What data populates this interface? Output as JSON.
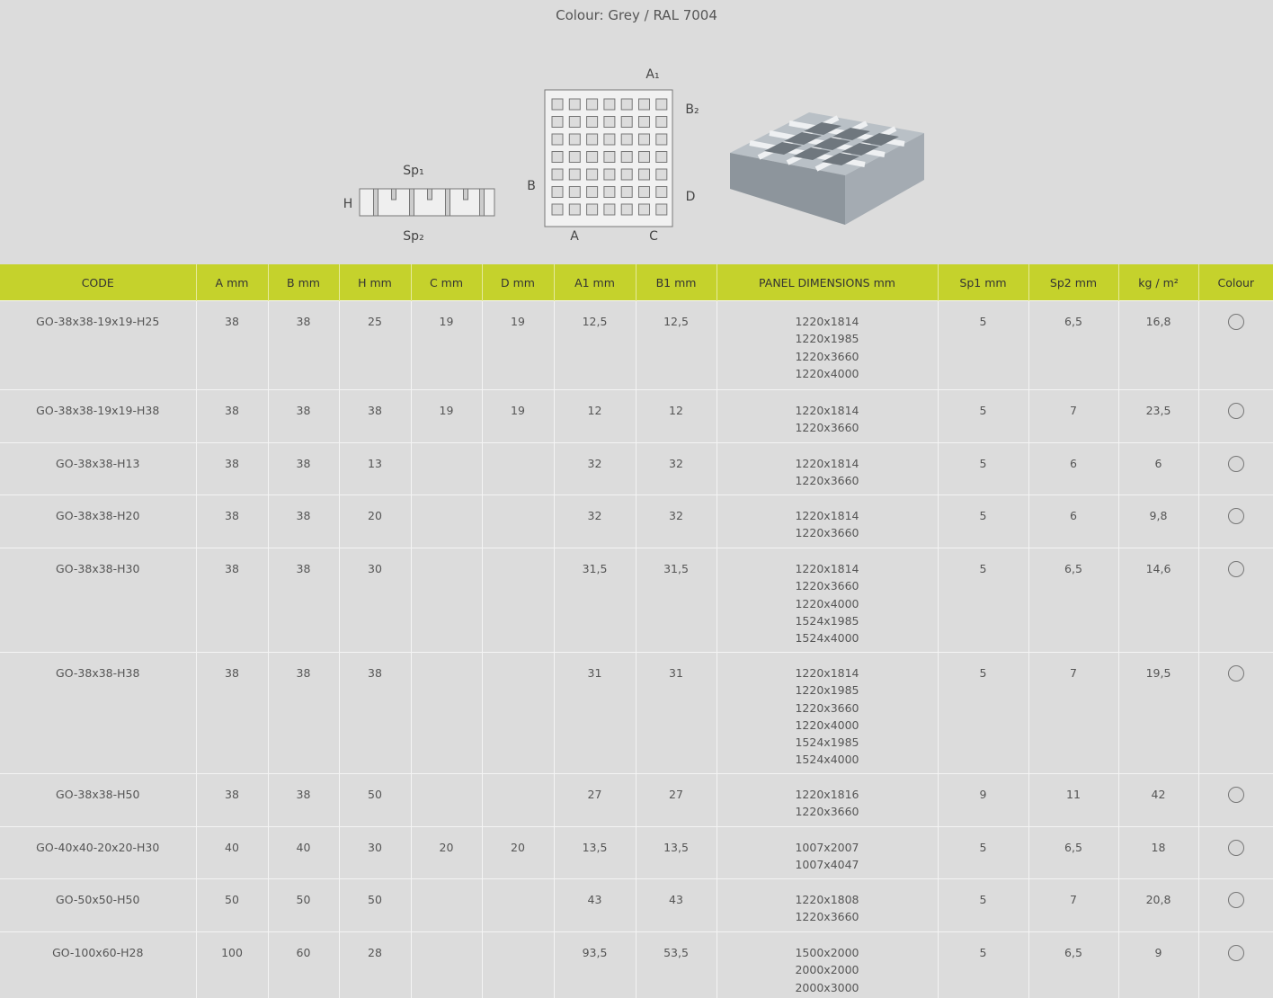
{
  "title": "Colour: Grey / RAL 7004",
  "diagram": {
    "labels": {
      "h": "H",
      "sp1": "Sp₁",
      "sp2": "Sp₂",
      "a1": "A₁",
      "b2": "B₂",
      "b": "B",
      "d": "D",
      "a": "A",
      "c": "C"
    }
  },
  "table": {
    "headers": [
      "CODE",
      "A mm",
      "B mm",
      "H mm",
      "C mm",
      "D mm",
      "A1 mm",
      "B1 mm",
      "PANEL DIMENSIONS mm",
      "Sp1 mm",
      "Sp2 mm",
      "kg / m²",
      "Colour"
    ],
    "rows": [
      [
        "GO-38x38-19x19-H25",
        "38",
        "38",
        "25",
        "19",
        "19",
        "12,5",
        "12,5",
        [
          "1220x1814",
          "1220x1985",
          "1220x3660",
          "1220x4000"
        ],
        "5",
        "6,5",
        "16,8"
      ],
      [
        "GO-38x38-19x19-H38",
        "38",
        "38",
        "38",
        "19",
        "19",
        "12",
        "12",
        [
          "1220x1814",
          "1220x3660"
        ],
        "5",
        "7",
        "23,5"
      ],
      [
        "GO-38x38-H13",
        "38",
        "38",
        "13",
        null,
        null,
        "32",
        "32",
        [
          "1220x1814",
          "1220x3660"
        ],
        "5",
        "6",
        "6"
      ],
      [
        "GO-38x38-H20",
        "38",
        "38",
        "20",
        null,
        null,
        "32",
        "32",
        [
          "1220x1814",
          "1220x3660"
        ],
        "5",
        "6",
        "9,8"
      ],
      [
        "GO-38x38-H30",
        "38",
        "38",
        "30",
        null,
        null,
        "31,5",
        "31,5",
        [
          "1220x1814",
          "1220x3660",
          "1220x4000",
          "1524x1985",
          "1524x4000"
        ],
        "5",
        "6,5",
        "14,6"
      ],
      [
        "GO-38x38-H38",
        "38",
        "38",
        "38",
        null,
        null,
        "31",
        "31",
        [
          "1220x1814",
          "1220x1985",
          "1220x3660",
          "1220x4000",
          "1524x1985",
          "1524x4000"
        ],
        "5",
        "7",
        "19,5"
      ],
      [
        "GO-38x38-H50",
        "38",
        "38",
        "50",
        null,
        null,
        "27",
        "27",
        [
          "1220x1816",
          "1220x3660"
        ],
        "9",
        "11",
        "42"
      ],
      [
        "GO-40x40-20x20-H30",
        "40",
        "40",
        "30",
        "20",
        "20",
        "13,5",
        "13,5",
        [
          "1007x2007",
          "1007x4047"
        ],
        "5",
        "6,5",
        "18"
      ],
      [
        "GO-50x50-H50",
        "50",
        "50",
        "50",
        null,
        null,
        "43",
        "43",
        [
          "1220x1808",
          "1220x3660"
        ],
        "5",
        "7",
        "20,8"
      ],
      [
        "GO-100x60-H28",
        "100",
        "60",
        "28",
        null,
        null,
        "93,5",
        "53,5",
        [
          "1500x2000",
          "2000x2000",
          "2000x3000"
        ],
        "5",
        "6,5",
        "9"
      ]
    ]
  }
}
